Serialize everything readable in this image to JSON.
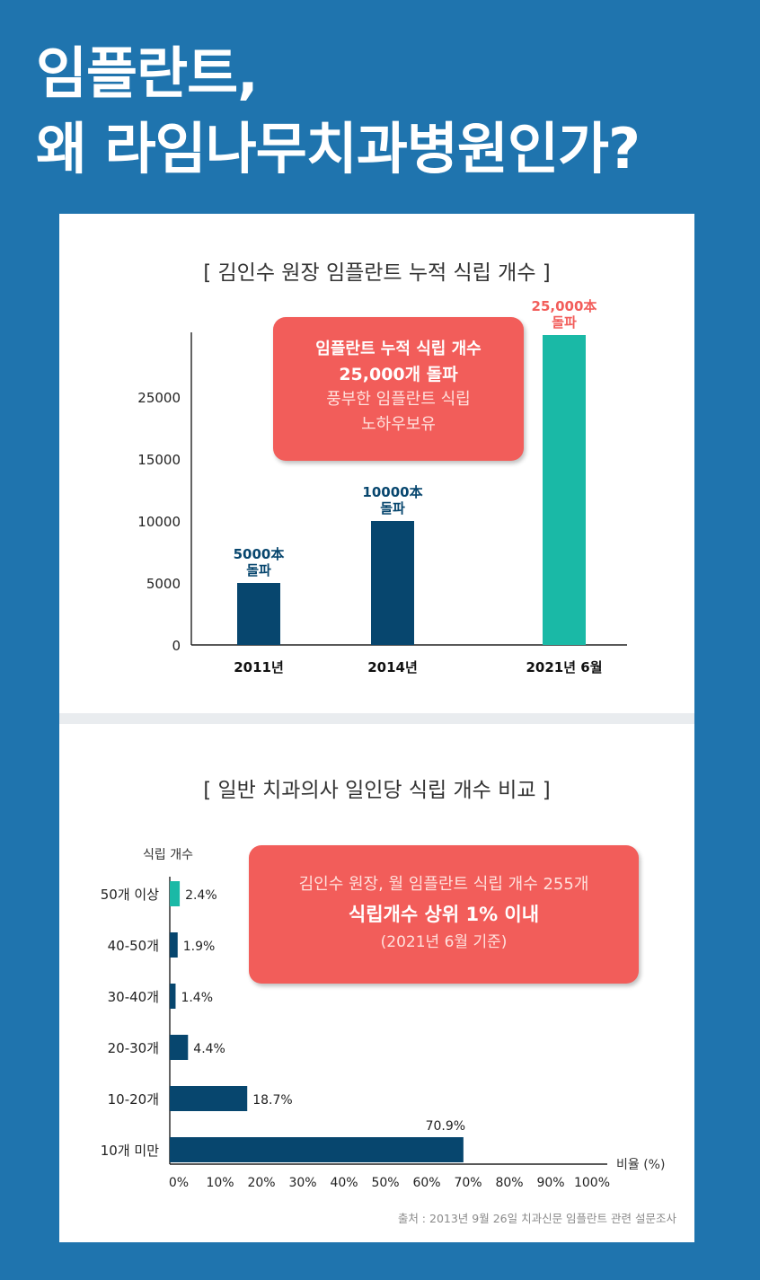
{
  "headline": {
    "line1": "임플란트,",
    "line2": "왜 라임나무치과병원인가?"
  },
  "chart1": {
    "title": "[ 김인수 원장 임플란트 누적 식립 개수 ]",
    "callout": {
      "line1": "임플란트 누적 식립 개수",
      "line2": "25,000개 돌파",
      "line3": "풍부한 임플란트 식립",
      "line4": "노하우보유"
    }
  },
  "chart2": {
    "title": "[ 일반 치과의사 일인당 식립 개수 비교 ]",
    "callout": {
      "line1": "김인수 원장, 월 임플란트 식립 개수 255개",
      "line2": "식립개수 상위 1% 이내",
      "line3": "(2021년 6월 기준)"
    },
    "source": "출처 : 2013년 9월 26일 치과신문 임플란트 관련 설문조사"
  },
  "colors": {
    "navy": "#07466e",
    "teal": "#1ab9a6",
    "coral": "#f25d5a",
    "background": "#1f74ae"
  },
  "chart_data": [
    {
      "type": "bar",
      "title": "[ 김인수 원장 임플란트 누적 식립 개수 ]",
      "categories": [
        "2011년",
        "2014년",
        "2021년 6월"
      ],
      "values": [
        5000,
        10000,
        25000
      ],
      "data_labels": [
        [
          "5000本",
          "돌파"
        ],
        [
          "10000本",
          "돌파"
        ],
        [
          "25,000本",
          "돌파"
        ]
      ],
      "bar_colors": [
        "#07466e",
        "#07466e",
        "#1ab9a6"
      ],
      "label_colors": [
        "#07466e",
        "#07466e",
        "#f25d5a"
      ],
      "yticks": [
        0,
        5000,
        10000,
        15000,
        25000
      ],
      "ylabel": "",
      "xlabel": ""
    },
    {
      "type": "bar",
      "orientation": "horizontal",
      "title": "[ 일반 치과의사 일인당 식립 개수 비교 ]",
      "categories": [
        "50개 이상",
        "40-50개",
        "30-40개",
        "20-30개",
        "10-20개",
        "10개 미만"
      ],
      "values": [
        2.4,
        1.9,
        1.4,
        4.4,
        18.7,
        70.9
      ],
      "data_labels": [
        "2.4%",
        "1.9%",
        "1.4%",
        "4.4%",
        "18.7%",
        "70.9%"
      ],
      "bar_colors": [
        "#1ab9a6",
        "#07466e",
        "#07466e",
        "#07466e",
        "#07466e",
        "#07466e"
      ],
      "ylabel": "식립 개수",
      "xlabel": "비율 (%)",
      "xticks": [
        "0%",
        "10%",
        "20%",
        "30%",
        "40%",
        "50%",
        "60%",
        "70%",
        "80%",
        "90%",
        "100%"
      ],
      "xlim": [
        0,
        100
      ]
    }
  ]
}
